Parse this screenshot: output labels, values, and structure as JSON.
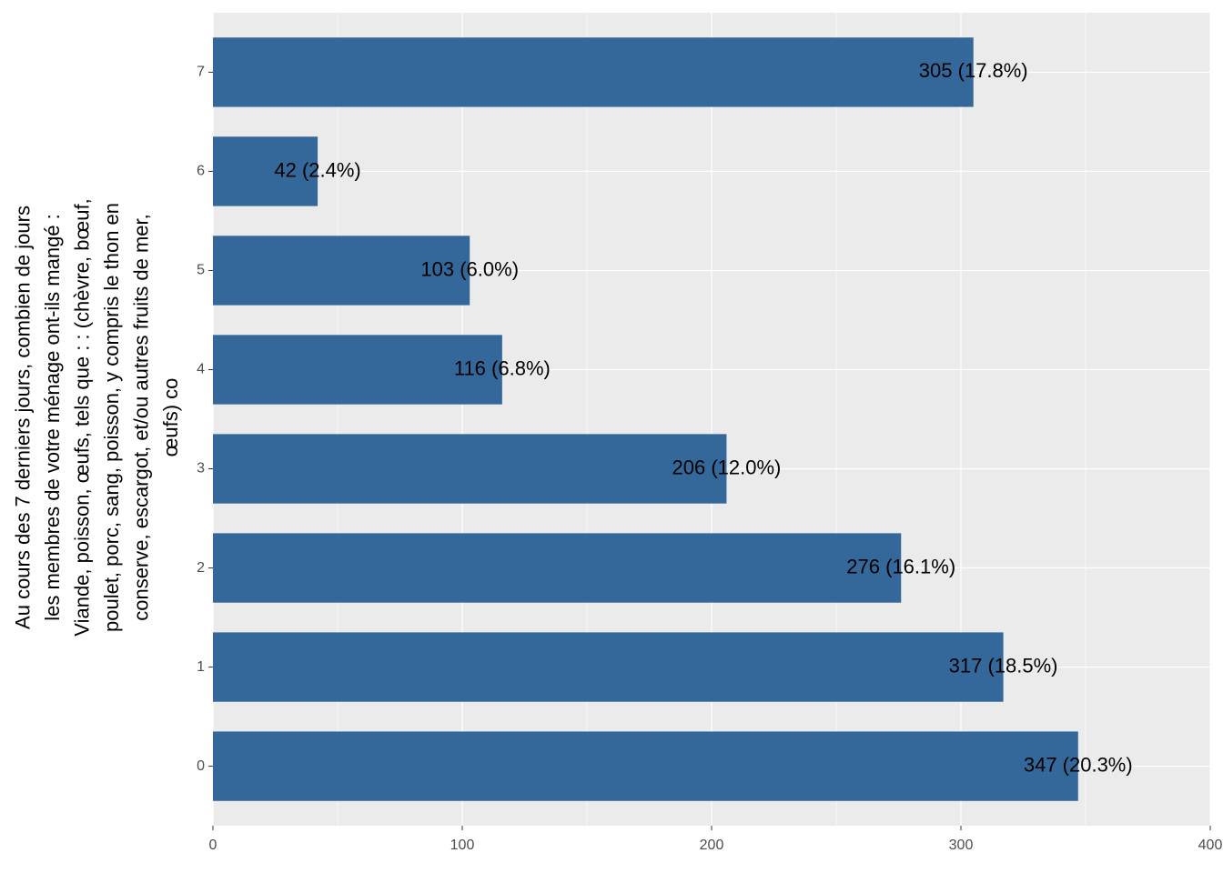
{
  "chart_data": {
    "type": "bar",
    "orientation": "horizontal",
    "y_label": [
      "Au cours des 7 derniers jours, combien de jours",
      "les membres de votre ménage ont-ils mangé :",
      "Viande, poisson, œufs, tels que : : (chèvre, bœuf,",
      "poulet, porc, sang, poisson, y compris le thon en",
      "conserve, escargot, et/ou autres fruits de mer,",
      "œufs) co"
    ],
    "categories": [
      "0",
      "1",
      "2",
      "3",
      "4",
      "5",
      "6",
      "7"
    ],
    "values": [
      347,
      317,
      276,
      206,
      116,
      103,
      42,
      305
    ],
    "value_labels": [
      "347 (20.3%)",
      "317 (18.5%)",
      "276 (16.1%)",
      "206 (12.0%)",
      "116 (6.8%)",
      "103 (6.0%)",
      "42 (2.4%)",
      "305 (17.8%)"
    ],
    "color": "#34679a",
    "xlim": [
      0,
      400
    ],
    "xticks": [
      0,
      100,
      200,
      300,
      400
    ],
    "grid": true
  }
}
